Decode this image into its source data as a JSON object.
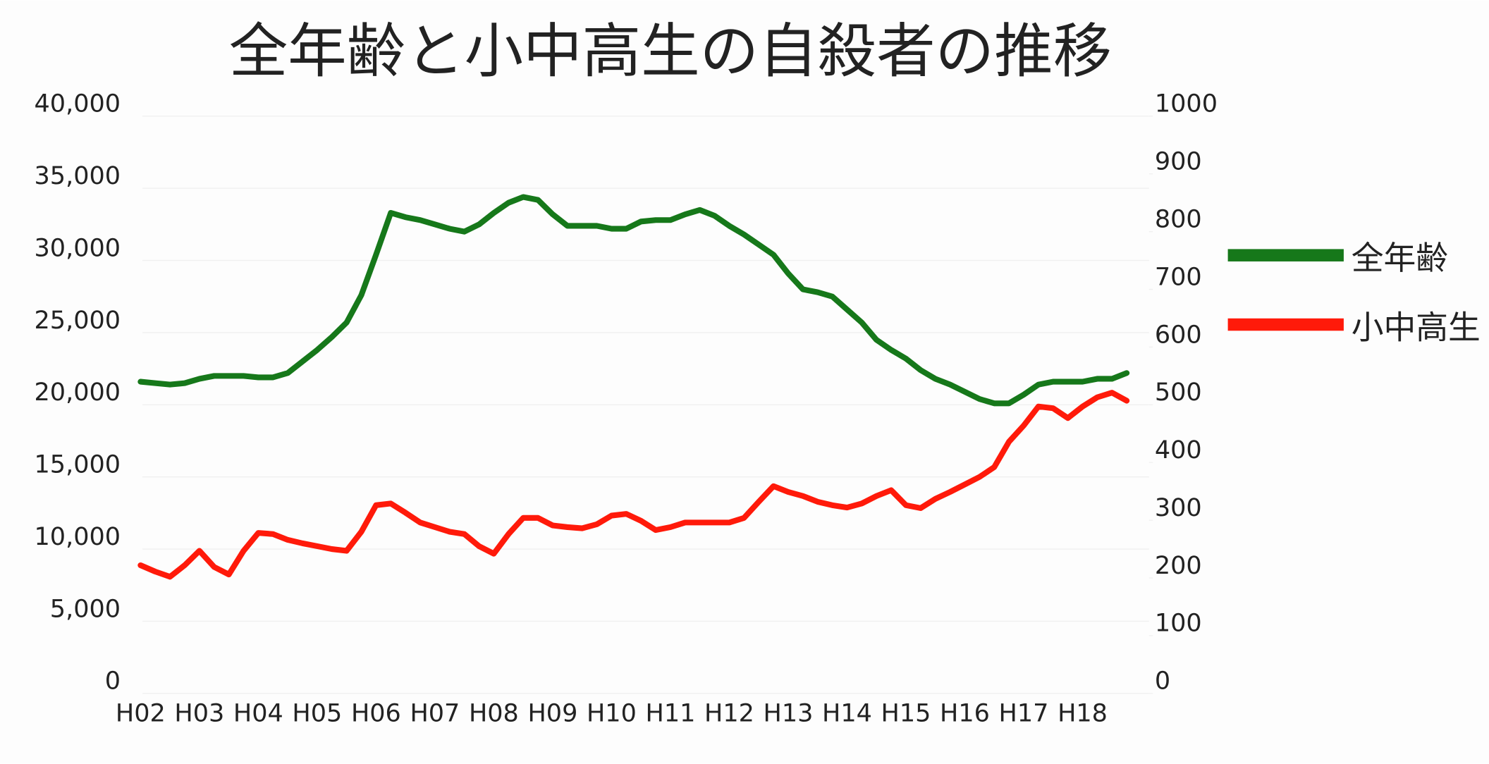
{
  "chart_data": {
    "type": "line",
    "title": "全年齢と小中高生の自殺者の推移",
    "categories": [
      "H02",
      null,
      null,
      null,
      "H03",
      null,
      null,
      null,
      "H04",
      null,
      null,
      null,
      "H05",
      null,
      null,
      null,
      "H06",
      null,
      null,
      null,
      "H07",
      null,
      null,
      null,
      "H08",
      null,
      null,
      null,
      "H09",
      null,
      null,
      null,
      "H10",
      null,
      null,
      null,
      "H11",
      null,
      null,
      null,
      "H12",
      null,
      null,
      null,
      "H13",
      null,
      null,
      null,
      "H14",
      null,
      null,
      null,
      "H15",
      null,
      null,
      null,
      "H16",
      null,
      null,
      null,
      "H17",
      null,
      null,
      null,
      "H18",
      null,
      null,
      null
    ],
    "series": [
      {
        "name": "全年齢",
        "color": "#16781a",
        "values": [
          21600,
          21500,
          21400,
          21500,
          21800,
          22000,
          22000,
          22000,
          21900,
          21900,
          22200,
          23000,
          23800,
          24700,
          25700,
          27600,
          30400,
          33300,
          33000,
          32800,
          32500,
          32200,
          32000,
          32500,
          33300,
          34000,
          34400,
          34200,
          33200,
          32400,
          32400,
          32400,
          32200,
          32200,
          32700,
          32800,
          32800,
          33200,
          33500,
          33100,
          32400,
          31800,
          31100,
          30400,
          29100,
          28000,
          27800,
          27500,
          26600,
          25700,
          24500,
          23800,
          23200,
          22400,
          21800,
          21400,
          20900,
          20400,
          20100,
          20100,
          20700,
          21400,
          21600,
          21600,
          21600,
          21800,
          21800,
          22200
        ]
      },
      {
        "name": "小中高生",
        "color": "#ff1a0a",
        "axis": "y2",
        "values": [
          222,
          211,
          202,
          222,
          247,
          219,
          206,
          247,
          278,
          276,
          266,
          260,
          255,
          250,
          247,
          280,
          326,
          329,
          313,
          296,
          288,
          280,
          276,
          255,
          242,
          276,
          304,
          304,
          291,
          288,
          286,
          293,
          308,
          311,
          299,
          283,
          288,
          296,
          296,
          296,
          296,
          304,
          332,
          359,
          349,
          342,
          332,
          326,
          322,
          329,
          342,
          352,
          326,
          321,
          337,
          349,
          362,
          375,
          392,
          436,
          464,
          497,
          494,
          477,
          497,
          513,
          521,
          507
        ]
      }
    ],
    "ylim": [
      0,
      40000
    ],
    "yticks": [
      0,
      {
        "value": 5000,
        "label": "5,000"
      },
      {
        "value": 10000,
        "label": "10,000"
      },
      {
        "value": 15000,
        "label": "15,000"
      },
      {
        "value": 20000,
        "label": "20,000"
      },
      {
        "value": 25000,
        "label": "25,000"
      },
      {
        "value": 30000,
        "label": "30,000"
      },
      {
        "value": 35000,
        "label": "35,000"
      },
      {
        "value": 40000,
        "label": "40,000"
      }
    ],
    "y2lim": [
      0,
      1000
    ],
    "y2ticks": [
      0,
      100,
      200,
      300,
      400,
      500,
      600,
      700,
      800,
      900,
      1000
    ],
    "grid": true,
    "legend": "right"
  }
}
